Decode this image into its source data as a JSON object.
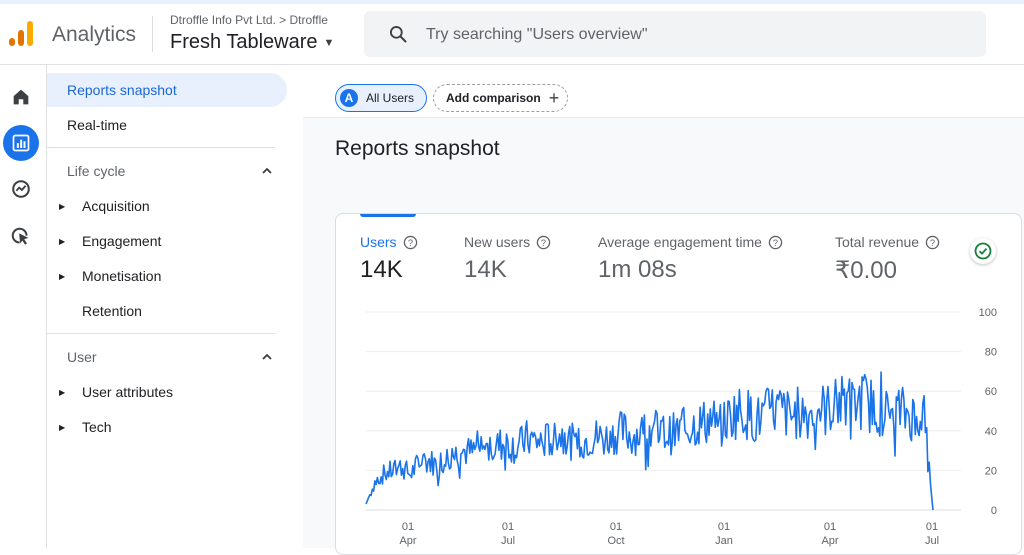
{
  "header": {
    "app_name": "Analytics",
    "breadcrumb": "Dtroffle Info Pvt Ltd. > Dtroffle",
    "property": "Fresh Tableware",
    "search_placeholder": "Try searching \"Users overview\""
  },
  "rail": {
    "icons": [
      "home-icon",
      "reports-icon",
      "explore-icon",
      "advertising-icon"
    ],
    "active": "reports-icon",
    "active_color": "#1a73e8"
  },
  "sidenav": {
    "top_items": [
      {
        "label": "Reports snapshot",
        "selected": true
      },
      {
        "label": "Real-time",
        "selected": false
      }
    ],
    "lifecycle": {
      "title": "Life cycle",
      "items": [
        "Acquisition",
        "Engagement",
        "Monetisation",
        "Retention"
      ]
    },
    "user": {
      "title": "User",
      "items": [
        "User attributes",
        "Tech"
      ]
    }
  },
  "comparison": {
    "badge": "A",
    "all_users": "All Users",
    "add_comparison": "Add comparison"
  },
  "page_title": "Reports snapshot",
  "metrics": [
    {
      "label": "Users",
      "value": "14K",
      "active": true
    },
    {
      "label": "New users",
      "value": "14K",
      "active": false
    },
    {
      "label": "Average engagement time",
      "value": "1m 08s",
      "active": false
    },
    {
      "label": "Total revenue",
      "value": "₹0.00",
      "active": false
    }
  ],
  "chart_data": {
    "type": "line",
    "ylim": [
      0,
      100
    ],
    "y_ticks": [
      0,
      20,
      40,
      60,
      80,
      100
    ],
    "x_ticks": [
      {
        "day": "01",
        "month": "Apr"
      },
      {
        "day": "01",
        "month": "Jul"
      },
      {
        "day": "01",
        "month": "Oct"
      },
      {
        "day": "01",
        "month": "Jan"
      },
      {
        "day": "01",
        "month": "Apr"
      },
      {
        "day": "01",
        "month": "Jul"
      }
    ],
    "line_color": "#1a73e8",
    "series": [
      {
        "weekly_values": [
          3,
          14,
          18,
          20,
          22,
          18,
          24,
          25,
          23,
          26,
          28,
          30,
          29,
          32,
          30,
          33,
          34,
          31,
          36,
          35,
          34,
          37,
          38,
          35,
          33,
          36,
          37,
          36,
          38,
          40,
          37,
          39,
          41,
          40,
          38,
          39,
          41,
          43,
          44,
          46,
          42,
          47,
          50,
          49,
          45,
          48,
          51,
          50,
          47,
          50,
          48,
          52,
          50,
          55,
          54,
          52,
          56,
          53,
          51,
          48,
          50,
          49,
          47,
          46,
          0
        ]
      }
    ]
  }
}
